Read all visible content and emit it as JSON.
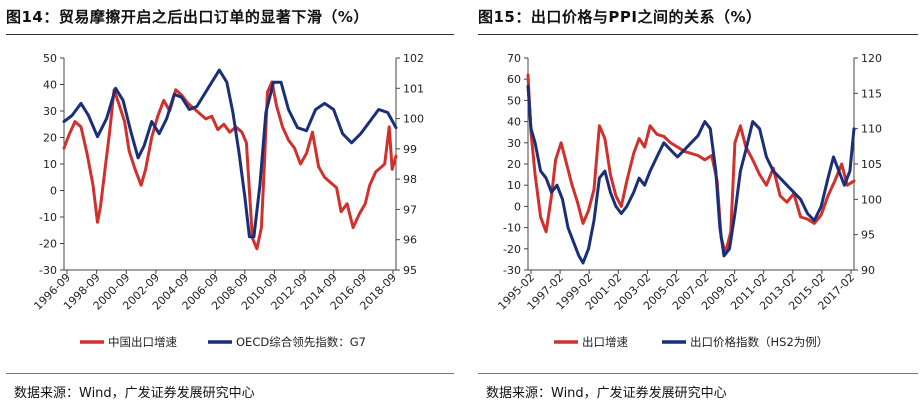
{
  "sources": {
    "left": "数据来源：Wind，广发证券发展研究中心",
    "right": "数据来源：Wind，广发证券发展研究中心"
  },
  "chart_data": [
    {
      "type": "line",
      "title": "图14：贸易摩擦开启之后出口订单的显著下滑（%）",
      "x_ticks": [
        "1996-09",
        "1998-09",
        "2000-09",
        "2002-09",
        "2004-09",
        "2006-09",
        "2008-09",
        "2010-09",
        "2012-09",
        "2014-09",
        "2016-09",
        "2018-09"
      ],
      "x_range": [
        1996.67,
        2018.75
      ],
      "ylim_left": [
        -30,
        50
      ],
      "yticks_left": [
        -30,
        -20,
        -10,
        0,
        10,
        20,
        30,
        40,
        50
      ],
      "ylim_right": [
        95,
        102
      ],
      "yticks_right": [
        95,
        96,
        97,
        98,
        99,
        100,
        101,
        102
      ],
      "grid": false,
      "legend_position": "bottom",
      "series": [
        {
          "name": "中国出口增速",
          "axis": "left",
          "color": "#d0312d",
          "x": [
            1996.67,
            1997.0,
            1997.4,
            1997.8,
            1998.2,
            1998.6,
            1998.9,
            1999.1,
            1999.4,
            1999.7,
            2000.0,
            2000.3,
            2000.7,
            2001.0,
            2001.4,
            2001.8,
            2002.1,
            2002.5,
            2002.9,
            2003.3,
            2003.7,
            2004.1,
            2004.5,
            2004.9,
            2005.3,
            2005.7,
            2006.1,
            2006.5,
            2006.9,
            2007.3,
            2007.7,
            2008.1,
            2008.5,
            2008.8,
            2009.0,
            2009.2,
            2009.5,
            2009.8,
            2010.0,
            2010.2,
            2010.5,
            2010.8,
            2011.2,
            2011.6,
            2012.0,
            2012.4,
            2012.8,
            2013.2,
            2013.6,
            2014.0,
            2014.4,
            2014.8,
            2015.1,
            2015.5,
            2015.9,
            2016.3,
            2016.7,
            2017.0,
            2017.4,
            2017.8,
            2018.0,
            2018.3,
            2018.5,
            2018.75
          ],
          "y": [
            16,
            21,
            26,
            24,
            14,
            2,
            -12,
            -6,
            8,
            22,
            38,
            33,
            26,
            15,
            8,
            2,
            8,
            20,
            28,
            34,
            30,
            38,
            36,
            33,
            31,
            29,
            27,
            28,
            23,
            25,
            22,
            24,
            22,
            18,
            0,
            -18,
            -22,
            -14,
            10,
            37,
            41,
            32,
            24,
            19,
            16,
            10,
            14,
            22,
            9,
            5,
            3,
            1,
            -8,
            -5,
            -14,
            -9,
            -5,
            2,
            7,
            9,
            10,
            24,
            8,
            13
          ]
        },
        {
          "name": "OECD综合领先指数：G7",
          "axis": "right",
          "color": "#1a2f78",
          "x": [
            1996.67,
            1997.2,
            1997.8,
            1998.3,
            1998.9,
            1999.5,
            2000.1,
            2000.6,
            2001.1,
            2001.6,
            2002.0,
            2002.5,
            2003.0,
            2003.5,
            2004.0,
            2004.5,
            2005.0,
            2005.5,
            2006.0,
            2006.5,
            2007.0,
            2007.5,
            2007.9,
            2008.3,
            2008.7,
            2009.0,
            2009.3,
            2009.7,
            2010.1,
            2010.6,
            2011.1,
            2011.6,
            2012.2,
            2012.8,
            2013.4,
            2014.0,
            2014.6,
            2015.2,
            2015.8,
            2016.4,
            2017.0,
            2017.6,
            2018.2,
            2018.75
          ],
          "y": [
            99.9,
            100.1,
            100.5,
            100.1,
            99.4,
            100.0,
            101.0,
            100.6,
            99.6,
            98.7,
            99.1,
            99.9,
            99.5,
            100.0,
            100.8,
            100.7,
            100.3,
            100.4,
            100.8,
            101.2,
            101.6,
            101.2,
            100.2,
            98.9,
            97.4,
            96.1,
            96.1,
            97.8,
            100.2,
            101.2,
            101.2,
            100.3,
            99.7,
            99.6,
            100.3,
            100.5,
            100.3,
            99.5,
            99.2,
            99.5,
            99.9,
            100.3,
            100.2,
            99.7
          ]
        }
      ]
    },
    {
      "type": "line",
      "title": "图15：出口价格与PPI之间的关系（%）",
      "x_ticks": [
        "1995-02",
        "1997-02",
        "1999-02",
        "2001-02",
        "2003-02",
        "2005-02",
        "2007-02",
        "2009-02",
        "2011-02",
        "2013-02",
        "2015-02",
        "2017-02"
      ],
      "x_range": [
        1995.08,
        2018.9
      ],
      "ylim_left": [
        -30,
        70
      ],
      "yticks_left": [
        -30,
        -20,
        -10,
        0,
        10,
        20,
        30,
        40,
        50,
        60,
        70
      ],
      "ylim_right": [
        90,
        120
      ],
      "yticks_right": [
        90,
        95,
        100,
        105,
        110,
        115,
        120
      ],
      "grid": false,
      "legend_position": "bottom",
      "series": [
        {
          "name": "出口增速",
          "axis": "left",
          "color": "#d0312d",
          "x": [
            1995.08,
            1995.3,
            1995.6,
            1996.0,
            1996.4,
            1996.8,
            1997.1,
            1997.5,
            1997.9,
            1998.3,
            1998.7,
            1999.1,
            1999.5,
            1999.9,
            2000.3,
            2000.7,
            2001.1,
            2001.5,
            2001.9,
            2002.3,
            2002.8,
            2003.2,
            2003.6,
            2004.0,
            2004.5,
            2005.0,
            2005.5,
            2006.0,
            2006.5,
            2007.0,
            2007.5,
            2008.0,
            2008.5,
            2008.9,
            2009.2,
            2009.5,
            2009.9,
            2010.2,
            2010.6,
            2011.0,
            2011.5,
            2012.0,
            2012.5,
            2013.0,
            2013.5,
            2014.0,
            2014.5,
            2015.0,
            2015.5,
            2016.0,
            2016.5,
            2017.0,
            2017.5,
            2018.0,
            2018.4,
            2018.9
          ],
          "y": [
            62,
            35,
            15,
            -5,
            -12,
            5,
            22,
            30,
            20,
            10,
            2,
            -8,
            -2,
            8,
            38,
            32,
            15,
            5,
            0,
            12,
            25,
            32,
            28,
            38,
            34,
            33,
            30,
            28,
            26,
            25,
            24,
            22,
            24,
            12,
            -15,
            -22,
            -12,
            30,
            38,
            28,
            22,
            15,
            10,
            18,
            5,
            2,
            6,
            -5,
            -6,
            -8,
            -4,
            5,
            12,
            20,
            10,
            12
          ]
        },
        {
          "name": "出口价格指数（HS2为例）",
          "axis": "right",
          "color": "#1a2f78",
          "x": [
            1995.08,
            1995.3,
            1995.6,
            1996.0,
            1996.4,
            1996.8,
            1997.2,
            1997.6,
            1998.0,
            1998.4,
            1998.8,
            1999.1,
            1999.5,
            1999.9,
            2000.3,
            2000.7,
            2001.1,
            2001.5,
            2001.9,
            2002.3,
            2002.8,
            2003.2,
            2003.6,
            2004.0,
            2004.5,
            2005.0,
            2005.5,
            2006.0,
            2006.5,
            2007.0,
            2007.5,
            2008.0,
            2008.4,
            2008.8,
            2009.1,
            2009.4,
            2009.8,
            2010.2,
            2010.6,
            2011.0,
            2011.5,
            2012.0,
            2012.5,
            2013.0,
            2013.5,
            2014.0,
            2014.5,
            2015.0,
            2015.5,
            2016.0,
            2016.5,
            2017.0,
            2017.4,
            2017.8,
            2018.2,
            2018.6,
            2018.9
          ],
          "y": [
            116,
            110,
            108,
            104,
            103,
            101,
            102,
            100,
            96,
            94,
            92,
            91,
            93,
            97,
            103,
            104,
            101,
            99,
            98,
            99,
            101,
            103,
            102,
            104,
            106,
            108,
            107,
            106,
            107,
            108,
            109,
            111,
            110,
            104,
            96,
            92,
            93,
            98,
            104,
            107,
            111,
            110,
            106,
            104,
            103,
            102,
            101,
            100,
            98,
            97,
            99,
            103,
            106,
            104,
            102,
            104,
            110
          ]
        }
      ]
    }
  ]
}
